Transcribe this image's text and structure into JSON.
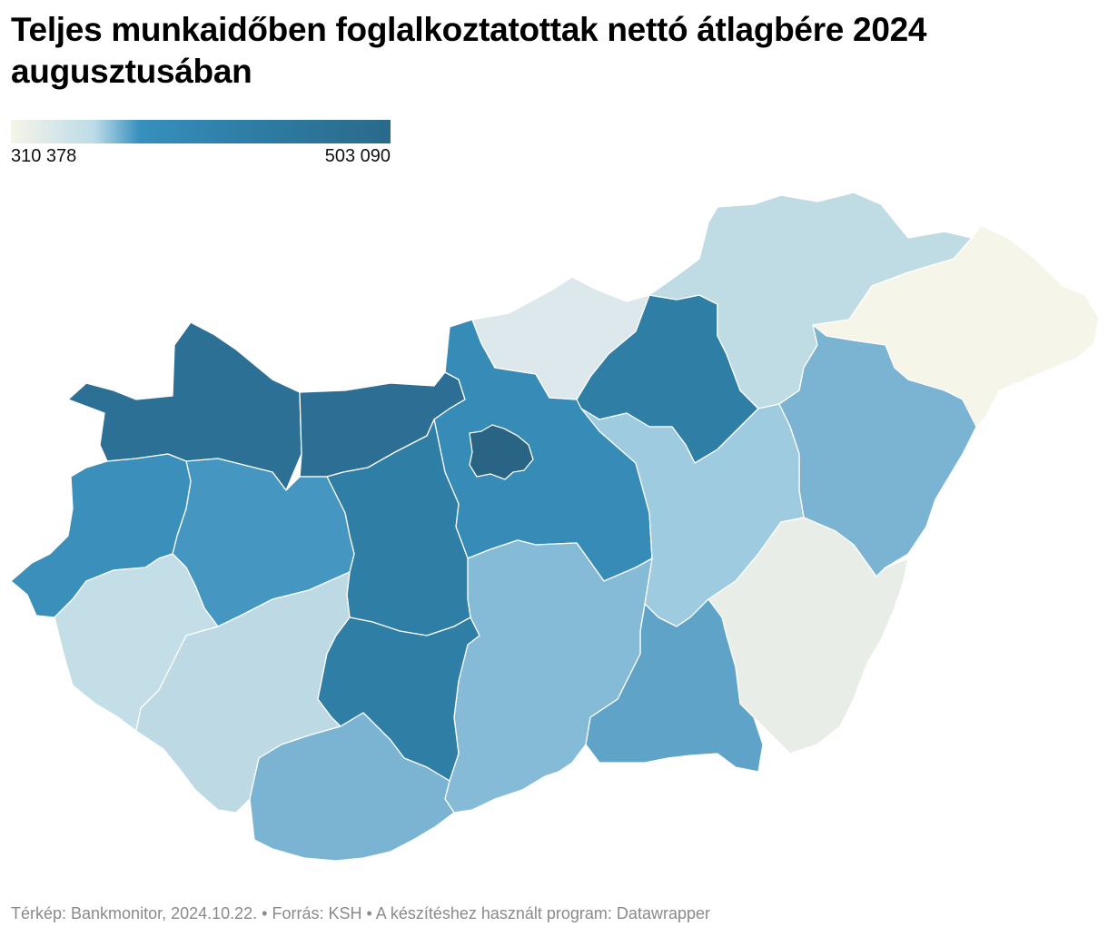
{
  "title": "Teljes munkaidőben foglalkoztatottak nettó átlagbére 2024 augusztusában",
  "legend": {
    "min_label": "310 378",
    "max_label": "503 090",
    "min_color": "#f6f5e8",
    "max_color": "#2a6a8a"
  },
  "regions": [
    {
      "id": "gyor-moson-sopron",
      "color": "#2d7095"
    },
    {
      "id": "komarom-esztergom",
      "color": "#2d6f94"
    },
    {
      "id": "pest",
      "color": "#368cb6"
    },
    {
      "id": "budapest",
      "color": "#2a6485"
    },
    {
      "id": "nograd",
      "color": "#dce8eb"
    },
    {
      "id": "heves",
      "color": "#2f7ea6"
    },
    {
      "id": "borsod-abauj-zemplen",
      "color": "#bfdce5"
    },
    {
      "id": "szabolcs-szatmar-bereg",
      "color": "#f6f5e9"
    },
    {
      "id": "hajdu-bihar",
      "color": "#7bb4d2"
    },
    {
      "id": "jasz-nagykun-szolnok",
      "color": "#9fcbe0"
    },
    {
      "id": "bekes",
      "color": "#e9ede8"
    },
    {
      "id": "csongrad-csanad",
      "color": "#5fa4c8"
    },
    {
      "id": "bacs-kiskun",
      "color": "#86bbd8"
    },
    {
      "id": "fejer",
      "color": "#2f7ea6"
    },
    {
      "id": "veszprem",
      "color": "#4596c0"
    },
    {
      "id": "vas",
      "color": "#3a8fbb"
    },
    {
      "id": "zala",
      "color": "#c4dee7"
    },
    {
      "id": "somogy",
      "color": "#bcd9e4"
    },
    {
      "id": "tolna",
      "color": "#2f7ea6"
    },
    {
      "id": "baranya",
      "color": "#7bb4d3"
    }
  ],
  "footer": "Térkép: Bankmonitor, 2024.10.22. • Forrás: KSH • A készítéshez használt program: Datawrapper"
}
